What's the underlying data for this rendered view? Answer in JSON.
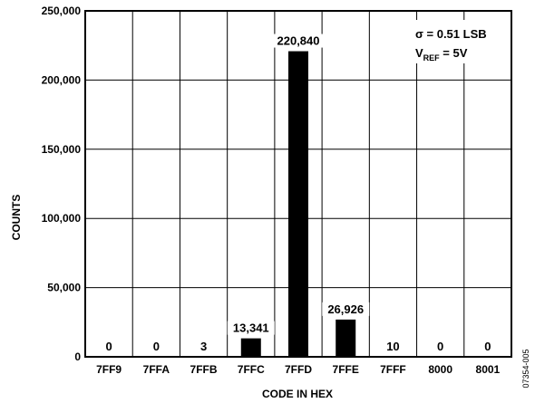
{
  "chart_data": {
    "type": "bar",
    "categories": [
      "7FF9",
      "7FFA",
      "7FFB",
      "7FFC",
      "7FFD",
      "7FFE",
      "7FFF",
      "8000",
      "8001"
    ],
    "values": [
      0,
      0,
      3,
      13341,
      220840,
      26926,
      10,
      0,
      0
    ],
    "value_labels": [
      "0",
      "0",
      "3",
      "13,341",
      "220,840",
      "26,926",
      "10",
      "0",
      "0"
    ],
    "xlabel": "CODE IN HEX",
    "ylabel": "COUNTS",
    "ylim": [
      0,
      250000
    ],
    "yticks": [
      0,
      50000,
      100000,
      150000,
      200000,
      250000
    ],
    "ytick_labels": [
      "0",
      "50,000",
      "100,000",
      "150,000",
      "200,000",
      "250,000"
    ],
    "grid": true,
    "bar_color": "#000000",
    "annotation": {
      "sigma": "σ = 0.51 LSB",
      "vref_main": "V",
      "vref_sub": "REF",
      "vref_rest": " = 5V"
    }
  },
  "figure_id": "07354-005"
}
